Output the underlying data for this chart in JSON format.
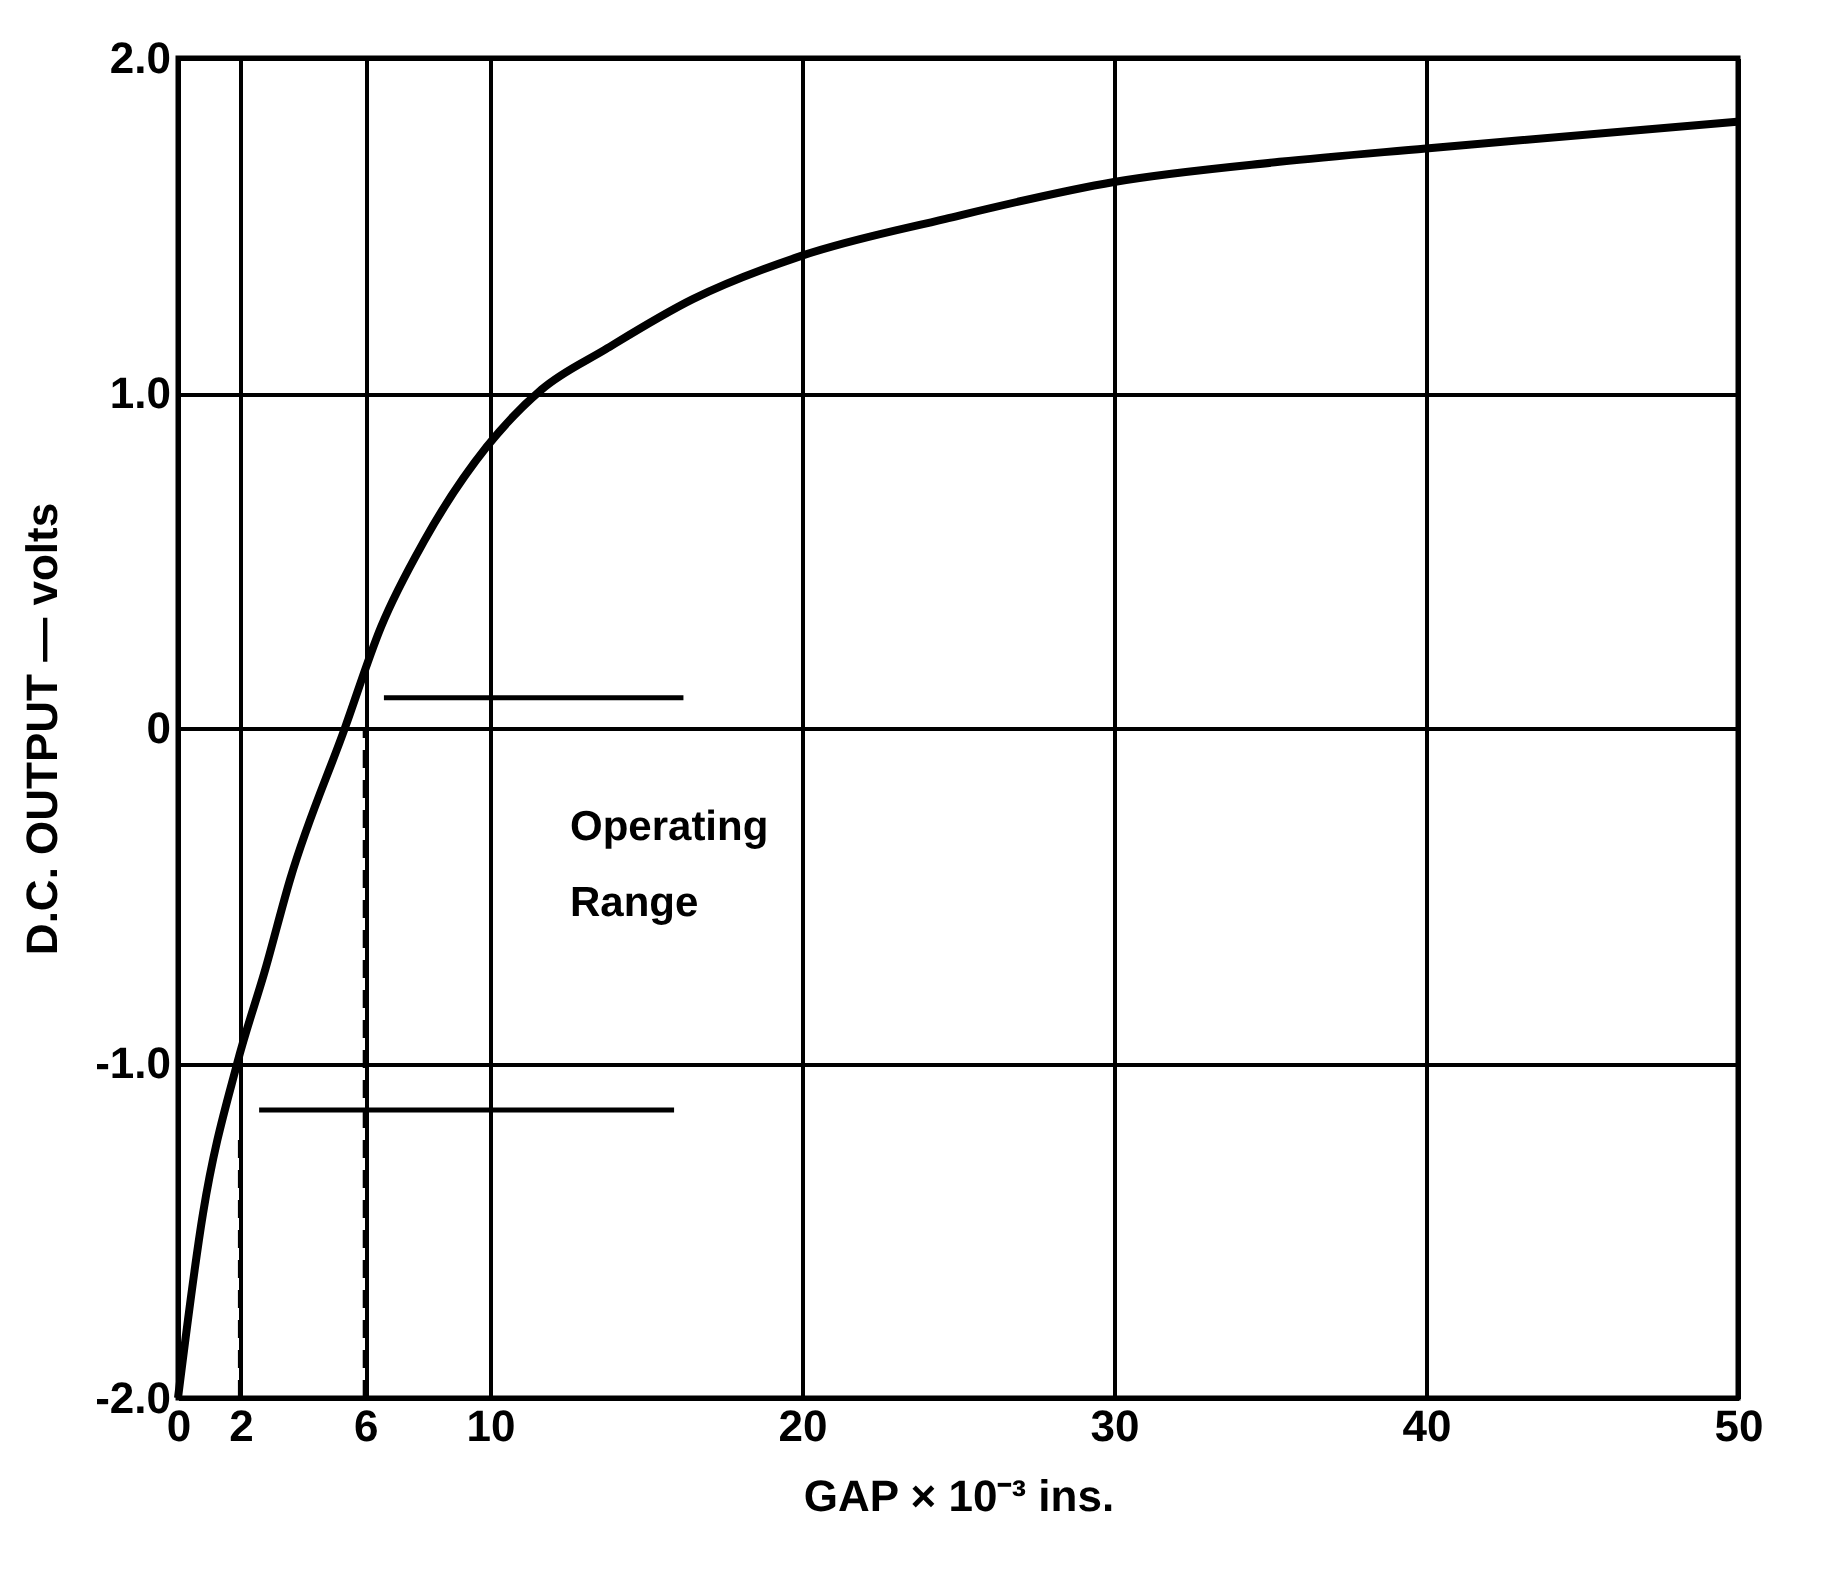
{
  "chart_data": {
    "type": "line",
    "xlabel": "GAP × 10⁻³ ins.",
    "ylabel": "D.C. OUTPUT — volts",
    "annotations": [
      "Operating Range"
    ],
    "xlim": [
      0,
      50
    ],
    "xticks": [
      0,
      2,
      6,
      10,
      20,
      30,
      40,
      50
    ],
    "ylim": [
      -2,
      2
    ],
    "yticks": [
      {
        "value": -2,
        "label": "-2.0"
      },
      {
        "value": -1,
        "label": "-1.0"
      },
      0,
      {
        "value": 1,
        "label": "1.0"
      },
      {
        "value": 2,
        "label": "2.0"
      }
    ],
    "grid": true,
    "marker": "none",
    "series": [
      {
        "color": "#000000",
        "line_style": "solid",
        "x": [
          0,
          0.8,
          1.9,
          2.8,
          3.6,
          5.35,
          6.5,
          7.9,
          9.9,
          11.65,
          13.7,
          16.5,
          20,
          24.6,
          30,
          35.3,
          40,
          50
        ],
        "values": [
          -2,
          -1.45,
          -1.0,
          -0.72,
          -0.45,
          0,
          0.3,
          0.56,
          0.84,
          1.01,
          1.13,
          1.28,
          1.41,
          1.52,
          1.63,
          1.69,
          1.73,
          1.81
        ]
      },
      {
        "color": "#000000",
        "line_style": "dashed",
        "x": [
          2,
          2
        ],
        "values": [
          -2,
          -1.2
        ]
      },
      {
        "color": "#000000",
        "line_style": "dashed",
        "x": [
          6,
          6
        ],
        "values": [
          -2,
          0
        ]
      },
      {
        "color": "#000000",
        "line_style": "solid",
        "x": [
          6.6,
          16.2
        ],
        "values": [
          0.09,
          0.09
        ]
      },
      {
        "color": "#000000",
        "line_style": "solid",
        "x": [
          2.6,
          15.9
        ],
        "values": [
          -1.14,
          -1.14
        ]
      }
    ]
  }
}
